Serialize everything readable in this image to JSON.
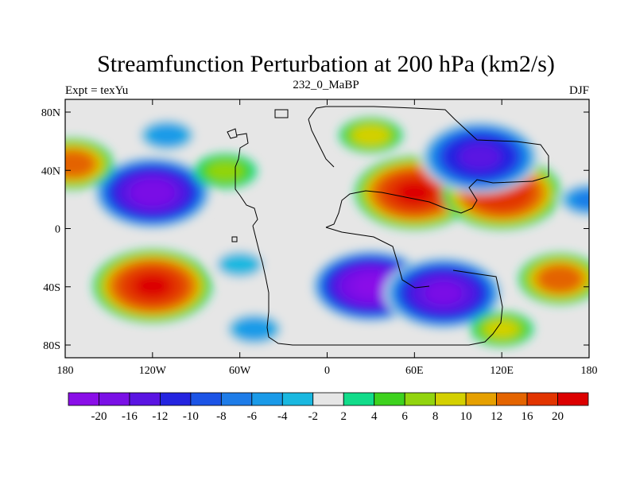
{
  "chart_data": {
    "type": "heatmap",
    "title": "Streamfunction Perturbation at 200 hPa (km2/s)",
    "left_string": "Expt = texYu",
    "center_string": "232_0_MaBP",
    "right_string": "DJF",
    "x_ticks": [
      "180",
      "120W",
      "60W",
      "0",
      "60E",
      "120E",
      "180"
    ],
    "y_ticks": [
      "80N",
      "40N",
      "0",
      "40S",
      "80S"
    ],
    "x_range": [
      -180,
      180
    ],
    "y_range": [
      -90,
      90
    ],
    "colorbar": {
      "labels": [
        "-20",
        "-16",
        "-12",
        "-10",
        "-8",
        "-6",
        "-4",
        "-2",
        "2",
        "4",
        "6",
        "8",
        "10",
        "12",
        "16",
        "20"
      ],
      "colors": [
        "#8a0ee8",
        "#7a10e6",
        "#5a14e2",
        "#2424e0",
        "#1c54e6",
        "#1e7ce8",
        "#1a9ae8",
        "#1ab8e0",
        "#e6e6e6",
        "#12dc8a",
        "#3ed21e",
        "#92d40e",
        "#d4d000",
        "#e6a000",
        "#e46400",
        "#e23400",
        "#dc0000"
      ]
    },
    "fields": [
      {
        "lon": -120,
        "lat": 25,
        "value": -21
      },
      {
        "lon": 30,
        "lat": -40,
        "value": -24
      },
      {
        "lon": 80,
        "lat": -45,
        "value": -20
      },
      {
        "lon": -120,
        "lat": -40,
        "value": 20
      },
      {
        "lon": 60,
        "lat": 25,
        "value": 20
      },
      {
        "lon": 120,
        "lat": 25,
        "value": 19
      },
      {
        "lon": 105,
        "lat": 50,
        "value": -16
      },
      {
        "lon": 30,
        "lat": 65,
        "value": 9
      },
      {
        "lon": -110,
        "lat": 65,
        "value": -6
      },
      {
        "lon": -60,
        "lat": -25,
        "value": -4
      },
      {
        "lon": 160,
        "lat": -35,
        "value": 14
      },
      {
        "lon": -175,
        "lat": 45,
        "value": 14
      },
      {
        "lon": 180,
        "lat": 20,
        "value": -8
      },
      {
        "lon": -70,
        "lat": 40,
        "value": 6
      },
      {
        "lon": 120,
        "lat": -70,
        "value": 8
      },
      {
        "lon": -50,
        "lat": -70,
        "value": -6
      }
    ]
  }
}
